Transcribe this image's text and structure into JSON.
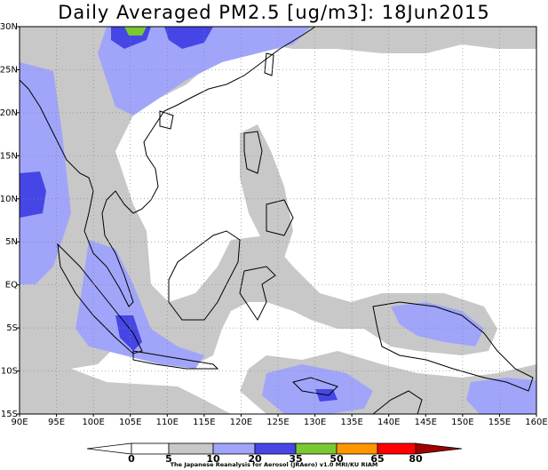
{
  "title": "Daily Averaged PM2.5 [ug/m3]: 18Jun2015",
  "map": {
    "lat_labels": [
      "30N",
      "25N",
      "20N",
      "15N",
      "10N",
      "5N",
      "EQ",
      "5S",
      "10S",
      "15S"
    ],
    "lon_labels": [
      "90E",
      "95E",
      "100E",
      "105E",
      "110E",
      "115E",
      "120E",
      "125E",
      "130E",
      "135E",
      "140E",
      "145E",
      "150E",
      "155E",
      "160E"
    ],
    "lat_range": [
      -15,
      30
    ],
    "lon_range": [
      90,
      160
    ],
    "gridlines": "dotted"
  },
  "colorbar": {
    "levels": [
      "0",
      "5",
      "10",
      "20",
      "35",
      "50",
      "65",
      "80"
    ],
    "colors": {
      "lt5": "#ffffff",
      "5_10": "#ffffff",
      "10_20": "#c8c8c8",
      "20_35": "#a0a5fa",
      "35_50": "#4646e6",
      "50_65": "#7ac832",
      "65_80": "#ff9600",
      "gt80_a": "#ff0000",
      "gt80_b": "#a00000"
    }
  },
  "credit": "The Japanese Reanalysis for Aerosol (JRAero) v1.0 MRI/KU RIAM"
}
